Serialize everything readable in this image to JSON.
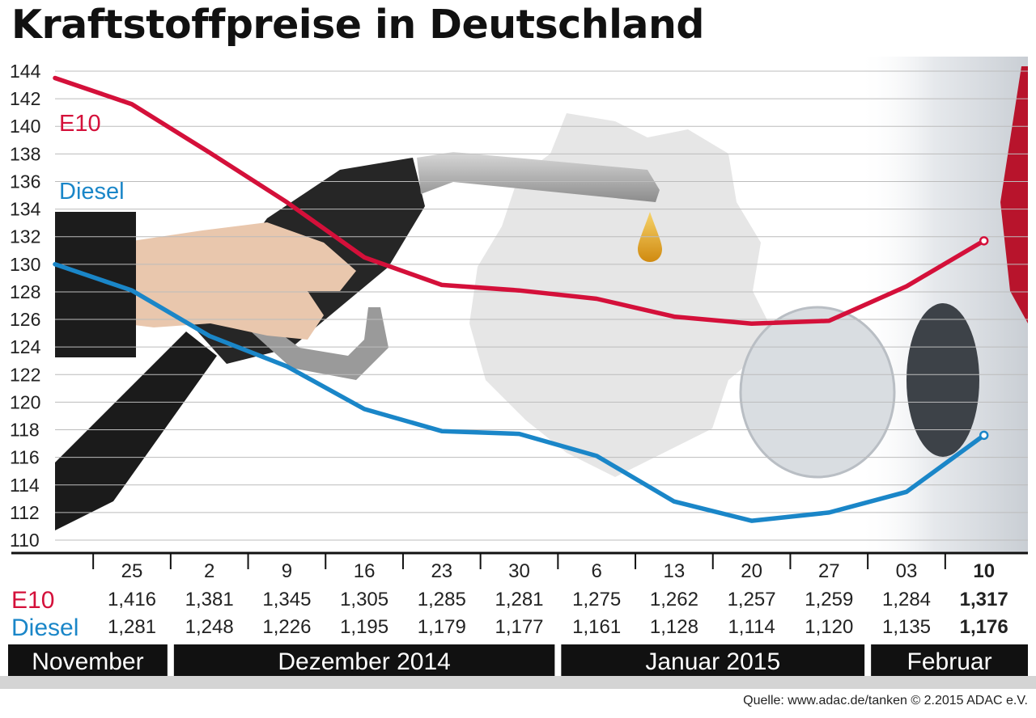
{
  "title": "Kraftstoffpreise in Deutschland",
  "source": "Quelle: www.adac.de/tanken   © 2.2015  ADAC e.V.",
  "colors": {
    "e10": "#d4103a",
    "diesel": "#1a86c8",
    "month_bar": "#111111"
  },
  "chart_data": {
    "type": "line",
    "title": "Kraftstoffpreise in Deutschland",
    "ylim": [
      110,
      144
    ],
    "yticks": [
      110,
      112,
      114,
      116,
      118,
      120,
      122,
      124,
      126,
      128,
      130,
      132,
      134,
      136,
      138,
      140,
      142,
      144
    ],
    "grid": true,
    "categories": [
      "25",
      "2",
      "9",
      "16",
      "23",
      "30",
      "6",
      "13",
      "20",
      "27",
      "03",
      "10"
    ],
    "series": [
      {
        "name": "E10",
        "labels": [
          "1,416",
          "1,381",
          "1,345",
          "1,305",
          "1,285",
          "1,281",
          "1,275",
          "1,262",
          "1,257",
          "1,259",
          "1,284",
          "1,317"
        ],
        "values": [
          141.6,
          138.1,
          134.5,
          130.5,
          128.5,
          128.1,
          127.5,
          126.2,
          125.7,
          125.9,
          128.4,
          131.7
        ],
        "start": 143.5
      },
      {
        "name": "Diesel",
        "labels": [
          "1,281",
          "1,248",
          "1,226",
          "1,195",
          "1,179",
          "1,177",
          "1,161",
          "1,128",
          "1,114",
          "1,120",
          "1,135",
          "1,176"
        ],
        "values": [
          128.1,
          124.8,
          122.6,
          119.5,
          117.9,
          117.7,
          116.1,
          112.8,
          111.4,
          112.0,
          113.5,
          117.6
        ],
        "start": 130.0
      }
    ],
    "months": [
      {
        "label": "November",
        "first": 0,
        "last": 0
      },
      {
        "label": "Dezember 2014",
        "first": 1,
        "last": 5
      },
      {
        "label": "Januar 2015",
        "first": 6,
        "last": 9
      },
      {
        "label": "Februar",
        "first": 10,
        "last": 11
      }
    ],
    "highlight_last": true
  }
}
